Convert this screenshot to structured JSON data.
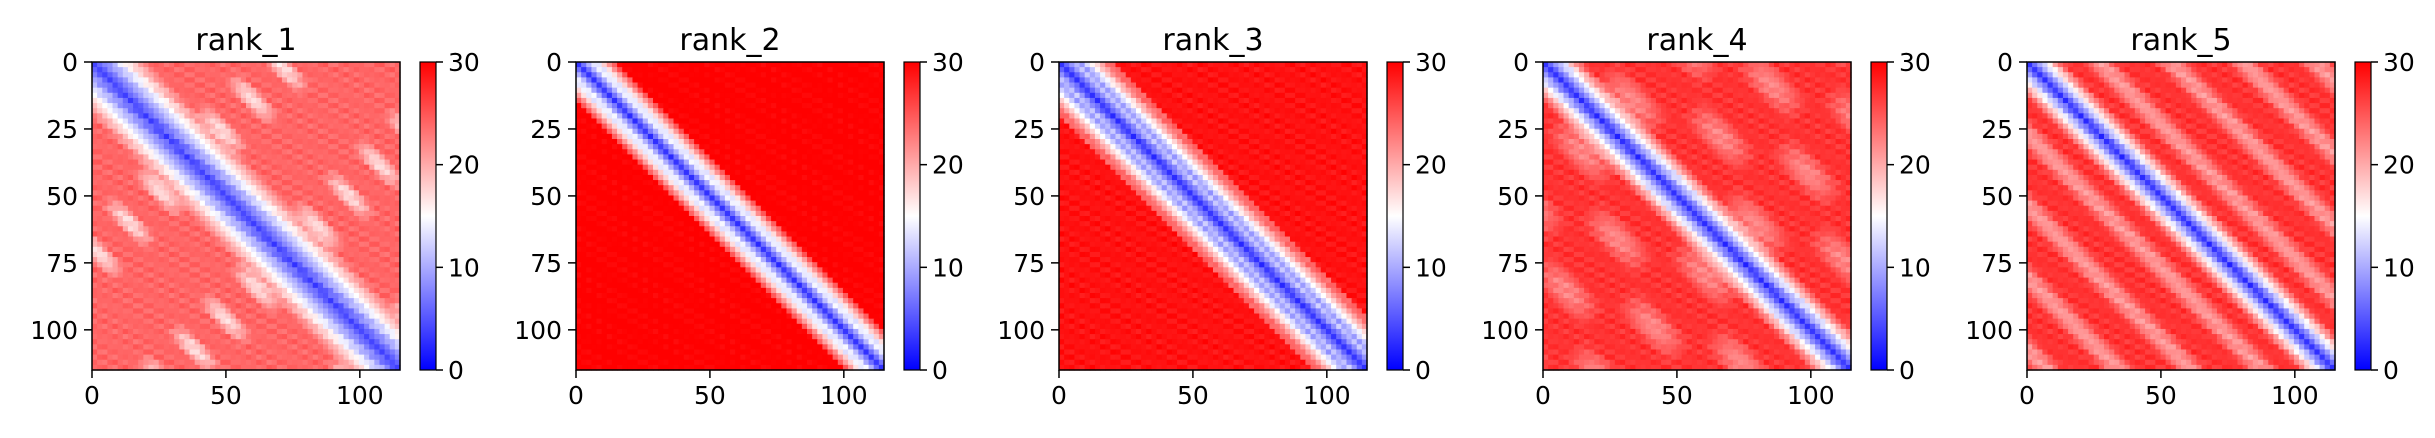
{
  "chart_data": [
    {
      "type": "heatmap",
      "title": "rank_1",
      "matrix_size": 115,
      "xlim": [
        0,
        115
      ],
      "ylim": [
        115,
        0
      ],
      "x_ticks": [
        0,
        50,
        100
      ],
      "y_ticks": [
        0,
        25,
        50,
        75,
        100
      ],
      "colorbar": {
        "min": 0,
        "max": 30,
        "ticks": [
          0,
          10,
          20,
          30
        ]
      },
      "colormap": "bwr",
      "pattern": "low values along the main diagonal; periodic off-diagonal blue contact bands; overall moderate-to-high values"
    },
    {
      "type": "heatmap",
      "title": "rank_2",
      "matrix_size": 115,
      "xlim": [
        0,
        115
      ],
      "ylim": [
        115,
        0
      ],
      "x_ticks": [
        0,
        50,
        100
      ],
      "y_ticks": [
        0,
        25,
        50,
        75,
        100
      ],
      "colorbar": {
        "min": 0,
        "max": 30,
        "ticks": [
          0,
          10,
          20,
          30
        ]
      },
      "colormap": "bwr",
      "pattern": "narrow blue main diagonal; saturated red elsewhere"
    },
    {
      "type": "heatmap",
      "title": "rank_3",
      "matrix_size": 115,
      "xlim": [
        0,
        115
      ],
      "ylim": [
        115,
        0
      ],
      "x_ticks": [
        0,
        50,
        100
      ],
      "y_ticks": [
        0,
        25,
        50,
        75,
        100
      ],
      "colorbar": {
        "min": 0,
        "max": 30,
        "ticks": [
          0,
          10,
          20,
          30
        ]
      },
      "colormap": "bwr",
      "pattern": "blue main diagonal with wider pale band; mostly red elsewhere"
    },
    {
      "type": "heatmap",
      "title": "rank_4",
      "matrix_size": 115,
      "xlim": [
        0,
        115
      ],
      "ylim": [
        115,
        0
      ],
      "x_ticks": [
        0,
        50,
        100
      ],
      "y_ticks": [
        0,
        25,
        50,
        75,
        100
      ],
      "colorbar": {
        "min": 0,
        "max": 30,
        "ticks": [
          0,
          10,
          20,
          30
        ]
      },
      "colormap": "bwr",
      "pattern": "blue main diagonal; patchy pale regions near the diagonal; red elsewhere"
    },
    {
      "type": "heatmap",
      "title": "rank_5",
      "matrix_size": 115,
      "xlim": [
        0,
        115
      ],
      "ylim": [
        115,
        0
      ],
      "x_ticks": [
        0,
        50,
        100
      ],
      "y_ticks": [
        0,
        25,
        50,
        75,
        100
      ],
      "colorbar": {
        "min": 0,
        "max": 30,
        "ticks": [
          0,
          10,
          20,
          30
        ]
      },
      "colormap": "bwr",
      "pattern": "blue main diagonal; parallel pale off-diagonal stripes; red elsewhere"
    }
  ],
  "colors": {
    "low": "#0000ff",
    "mid": "#ffffff",
    "high": "#ff0000"
  }
}
